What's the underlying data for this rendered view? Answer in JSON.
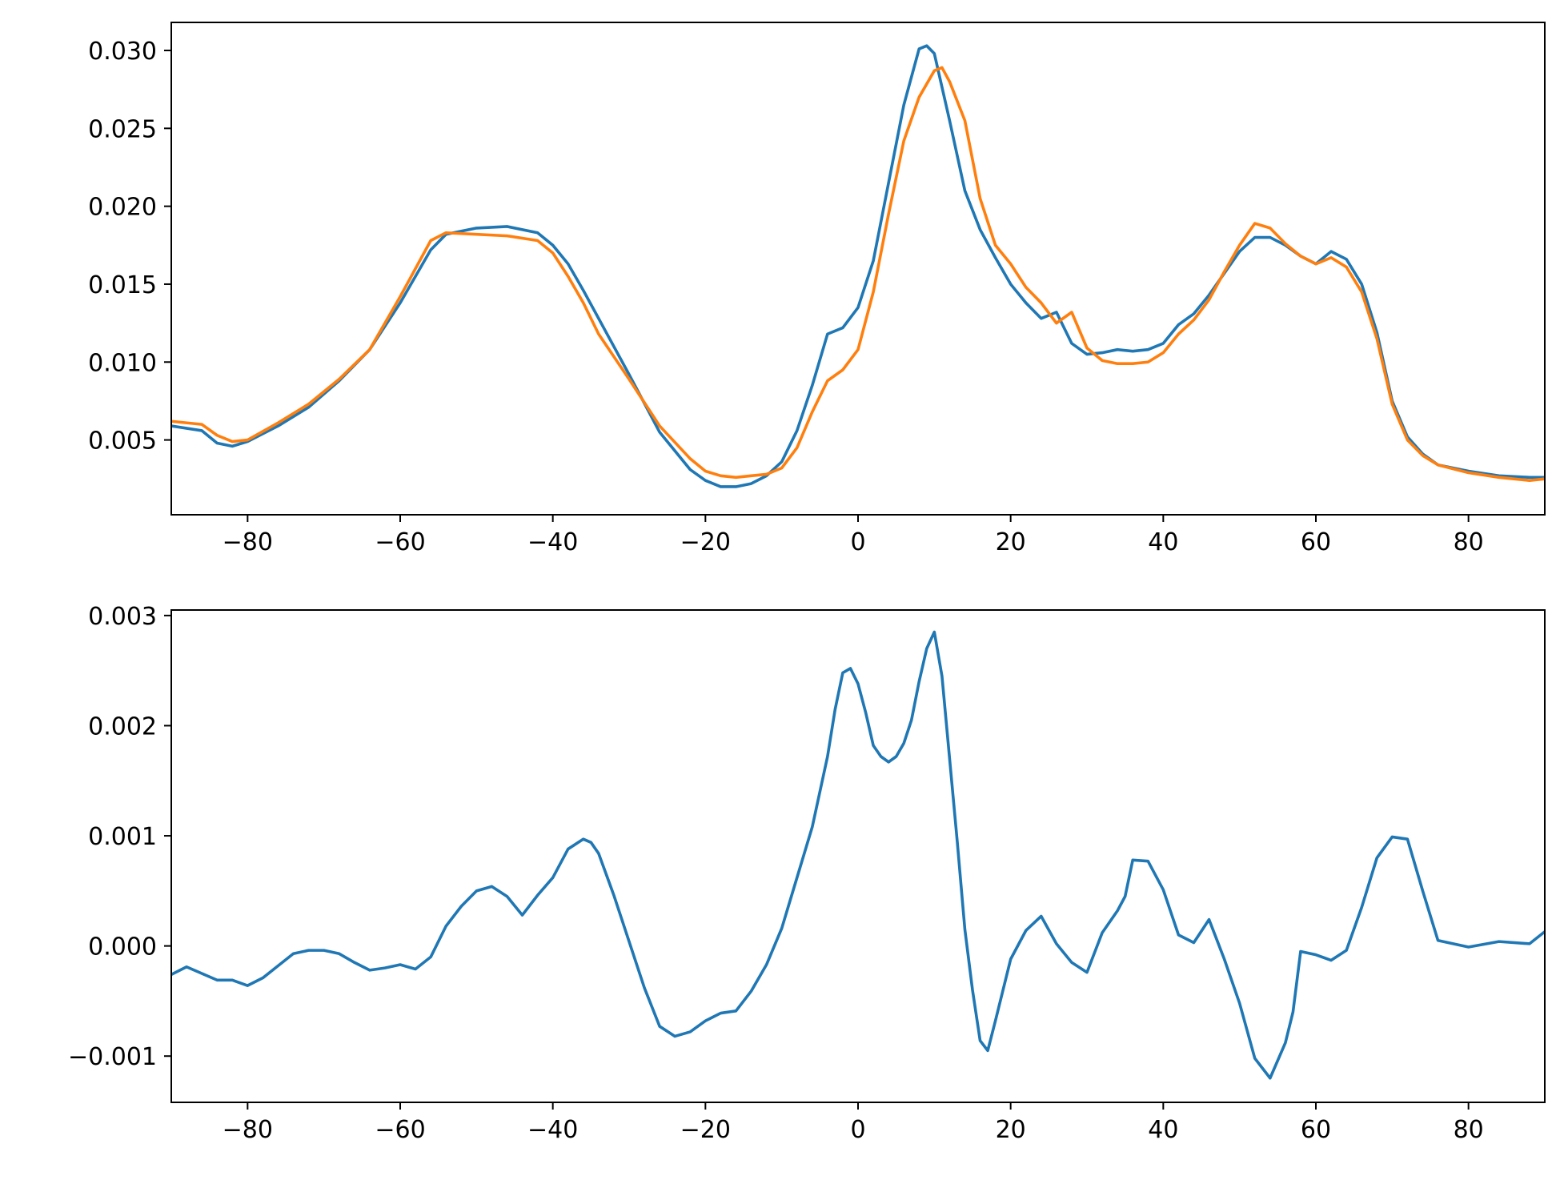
{
  "chart_data": [
    {
      "type": "line",
      "title": "",
      "xlabel": "",
      "ylabel": "",
      "xlim": [
        -90,
        90
      ],
      "ylim": [
        0.0002,
        0.0318
      ],
      "grid": false,
      "legend": "none",
      "xticks": [
        -80,
        -60,
        -40,
        -20,
        0,
        20,
        40,
        60,
        80
      ],
      "xtick_labels": [
        "−80",
        "−60",
        "−40",
        "−20",
        "0",
        "20",
        "40",
        "60",
        "80"
      ],
      "yticks": [
        0.005,
        0.01,
        0.015,
        0.02,
        0.025,
        0.03
      ],
      "ytick_labels": [
        "0.005",
        "0.010",
        "0.015",
        "0.020",
        "0.025",
        "0.030"
      ],
      "series": [
        {
          "color": "#1f77b4",
          "x": [
            -90,
            -86,
            -84,
            -82,
            -80,
            -76,
            -72,
            -68,
            -64,
            -60,
            -56,
            -54,
            -50,
            -46,
            -42,
            -40,
            -38,
            -36,
            -34,
            -30,
            -26,
            -22,
            -20,
            -18,
            -16,
            -14,
            -12,
            -10,
            -8,
            -6,
            -4,
            -2,
            0,
            2,
            4,
            6,
            8,
            9,
            10,
            12,
            14,
            16,
            18,
            20,
            22,
            24,
            26,
            28,
            30,
            32,
            34,
            36,
            38,
            40,
            42,
            44,
            46,
            48,
            50,
            52,
            54,
            56,
            58,
            60,
            62,
            64,
            66,
            68,
            70,
            72,
            74,
            76,
            80,
            84,
            88,
            90
          ],
          "values": [
            0.0059,
            0.0056,
            0.0048,
            0.0046,
            0.0049,
            0.0059,
            0.0071,
            0.0088,
            0.0108,
            0.0138,
            0.0172,
            0.0182,
            0.0186,
            0.0187,
            0.0183,
            0.0175,
            0.0163,
            0.0146,
            0.0128,
            0.0092,
            0.0055,
            0.0031,
            0.0024,
            0.002,
            0.002,
            0.0022,
            0.0027,
            0.0036,
            0.0056,
            0.0085,
            0.0118,
            0.0122,
            0.0135,
            0.0165,
            0.0215,
            0.0265,
            0.0301,
            0.0303,
            0.0298,
            0.0255,
            0.021,
            0.0185,
            0.0167,
            0.015,
            0.0138,
            0.0128,
            0.0132,
            0.0112,
            0.0105,
            0.0106,
            0.0108,
            0.0107,
            0.0108,
            0.0112,
            0.0124,
            0.0131,
            0.0143,
            0.0157,
            0.0171,
            0.018,
            0.018,
            0.0175,
            0.0168,
            0.0163,
            0.0171,
            0.0166,
            0.015,
            0.0119,
            0.0075,
            0.0052,
            0.0041,
            0.0034,
            0.003,
            0.0027,
            0.0026,
            0.0026
          ]
        },
        {
          "color": "#ff7f0e",
          "x": [
            -90,
            -86,
            -84,
            -82,
            -80,
            -76,
            -72,
            -68,
            -64,
            -60,
            -56,
            -54,
            -50,
            -46,
            -42,
            -40,
            -38,
            -36,
            -34,
            -30,
            -26,
            -22,
            -20,
            -18,
            -16,
            -14,
            -12,
            -10,
            -8,
            -6,
            -4,
            -2,
            0,
            2,
            4,
            6,
            8,
            10,
            11,
            12,
            14,
            16,
            18,
            20,
            22,
            24,
            26,
            28,
            30,
            32,
            34,
            36,
            38,
            40,
            42,
            44,
            46,
            48,
            50,
            52,
            54,
            56,
            58,
            60,
            62,
            64,
            66,
            68,
            70,
            72,
            74,
            76,
            80,
            84,
            88,
            90
          ],
          "values": [
            0.0062,
            0.006,
            0.0053,
            0.0049,
            0.005,
            0.0061,
            0.0073,
            0.0089,
            0.0108,
            0.0142,
            0.0178,
            0.0183,
            0.0182,
            0.0181,
            0.0178,
            0.017,
            0.0155,
            0.0138,
            0.0118,
            0.0089,
            0.0059,
            0.0038,
            0.003,
            0.0027,
            0.0026,
            0.0027,
            0.0028,
            0.0032,
            0.0045,
            0.0068,
            0.0088,
            0.0095,
            0.0108,
            0.0145,
            0.0195,
            0.0242,
            0.027,
            0.0287,
            0.0289,
            0.028,
            0.0255,
            0.0205,
            0.0175,
            0.0163,
            0.0148,
            0.0138,
            0.0125,
            0.0132,
            0.0109,
            0.0101,
            0.0099,
            0.0099,
            0.01,
            0.0106,
            0.0118,
            0.0127,
            0.014,
            0.0158,
            0.0175,
            0.0189,
            0.0186,
            0.0176,
            0.0168,
            0.0163,
            0.0167,
            0.0161,
            0.0145,
            0.0115,
            0.0073,
            0.005,
            0.004,
            0.0034,
            0.0029,
            0.0026,
            0.0024,
            0.0025
          ]
        }
      ]
    },
    {
      "type": "line",
      "title": "",
      "xlabel": "",
      "ylabel": "",
      "xlim": [
        -90,
        90
      ],
      "ylim": [
        -0.00142,
        0.00305
      ],
      "grid": false,
      "legend": "none",
      "xticks": [
        -80,
        -60,
        -40,
        -20,
        0,
        20,
        40,
        60,
        80
      ],
      "xtick_labels": [
        "−80",
        "−60",
        "−40",
        "−20",
        "0",
        "20",
        "40",
        "60",
        "80"
      ],
      "yticks": [
        -0.001,
        0.0,
        0.001,
        0.002,
        0.003
      ],
      "ytick_labels": [
        "−0.001",
        "0.000",
        "0.001",
        "0.002",
        "0.003"
      ],
      "series": [
        {
          "color": "#1f77b4",
          "x": [
            -90,
            -88,
            -86,
            -84,
            -82,
            -80,
            -78,
            -76,
            -74,
            -72,
            -70,
            -68,
            -66,
            -64,
            -62,
            -60,
            -58,
            -56,
            -54,
            -52,
            -50,
            -48,
            -46,
            -44,
            -42,
            -40,
            -38,
            -36,
            -35,
            -34,
            -32,
            -30,
            -28,
            -26,
            -24,
            -22,
            -20,
            -18,
            -16,
            -14,
            -12,
            -10,
            -8,
            -6,
            -4,
            -3,
            -2,
            -1,
            0,
            1,
            2,
            3,
            4,
            5,
            6,
            7,
            8,
            9,
            10,
            11,
            12,
            13,
            14,
            15,
            16,
            17,
            18,
            20,
            22,
            24,
            26,
            28,
            30,
            32,
            34,
            35,
            36,
            38,
            40,
            42,
            44,
            46,
            48,
            50,
            52,
            54,
            56,
            57,
            58,
            60,
            62,
            64,
            66,
            68,
            70,
            72,
            74,
            76,
            80,
            84,
            88,
            90
          ],
          "values": [
            -0.00026,
            -0.00019,
            -0.00025,
            -0.00031,
            -0.00031,
            -0.00036,
            -0.00029,
            -0.00018,
            -7e-05,
            -4e-05,
            -4e-05,
            -7e-05,
            -0.00015,
            -0.00022,
            -0.0002,
            -0.00017,
            -0.00021,
            -0.0001,
            0.00018,
            0.00036,
            0.0005,
            0.00054,
            0.00045,
            0.00028,
            0.00046,
            0.00062,
            0.00088,
            0.00097,
            0.00094,
            0.00084,
            0.00046,
            4e-05,
            -0.00038,
            -0.00073,
            -0.00082,
            -0.00078,
            -0.00068,
            -0.00061,
            -0.00059,
            -0.00041,
            -0.00017,
            0.00016,
            0.00062,
            0.00108,
            0.00172,
            0.00215,
            0.00248,
            0.00252,
            0.00238,
            0.00212,
            0.00182,
            0.00172,
            0.00167,
            0.00172,
            0.00184,
            0.00205,
            0.0024,
            0.0027,
            0.00285,
            0.00245,
            0.0017,
            0.00095,
            0.00015,
            -0.0004,
            -0.00086,
            -0.00095,
            -0.00068,
            -0.00012,
            0.00014,
            0.00027,
            2e-05,
            -0.00015,
            -0.00024,
            0.00012,
            0.00032,
            0.00045,
            0.00078,
            0.00077,
            0.00051,
            0.0001,
            3e-05,
            0.00024,
            -0.00012,
            -0.00052,
            -0.00102,
            -0.0012,
            -0.00088,
            -0.0006,
            -5e-05,
            -8e-05,
            -0.00013,
            -4e-05,
            0.00035,
            0.0008,
            0.00099,
            0.00097,
            0.0005,
            5e-05,
            -1e-05,
            4e-05,
            2e-05,
            0.00013
          ]
        }
      ]
    }
  ]
}
